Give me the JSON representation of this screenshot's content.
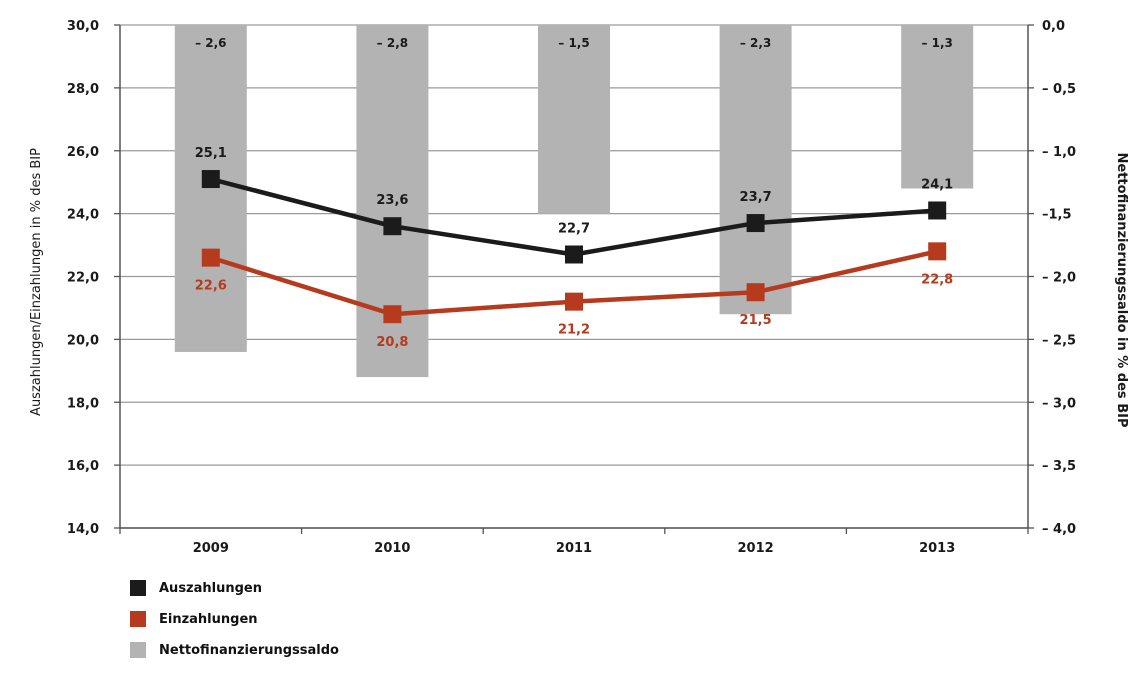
{
  "chart_data": {
    "type": "bar",
    "categories": [
      "2009",
      "2010",
      "2011",
      "2012",
      "2013"
    ],
    "left_axis": {
      "label": "Auszahlungen/Einzahlungen in % des BIP",
      "range": [
        14.0,
        30.0
      ],
      "ticks": [
        30.0,
        28.0,
        26.0,
        24.0,
        22.0,
        20.0,
        18.0,
        16.0,
        14.0
      ],
      "tick_labels": [
        "30,0",
        "28,0",
        "26,0",
        "24,0",
        "22,0",
        "20,0",
        "18,0",
        "16,0",
        "14,0"
      ]
    },
    "right_axis": {
      "label": "Nettofinanzierungssaldo in % des BIP",
      "range": [
        -4.0,
        0.0
      ],
      "ticks": [
        0.0,
        -0.5,
        -1.0,
        -1.5,
        -2.0,
        -2.5,
        -3.0,
        -3.5,
        -4.0
      ],
      "tick_labels": [
        "0,0",
        "– 0,5",
        "– 1,0",
        "–1,5",
        "– 2,0",
        "– 2,5",
        "– 3,0",
        "– 3,5",
        "– 4,0"
      ]
    },
    "series": [
      {
        "name": "Auszahlungen",
        "kind": "line",
        "axis": "left",
        "color": "#1b1b1b",
        "values": [
          25.1,
          23.6,
          22.7,
          23.7,
          24.1
        ],
        "labels": [
          "25,1",
          "23,6",
          "22,7",
          "23,7",
          "24,1"
        ]
      },
      {
        "name": "Einzahlungen",
        "kind": "line",
        "axis": "left",
        "color": "#b53a1e",
        "values": [
          22.6,
          20.8,
          21.2,
          21.5,
          22.8
        ],
        "labels": [
          "22,6",
          "20,8",
          "21,2",
          "21,5",
          "22,8"
        ]
      },
      {
        "name": "Nettofinanzierungssaldo",
        "kind": "bar",
        "axis": "right",
        "color": "#b3b3b3",
        "values": [
          -2.6,
          -2.8,
          -1.5,
          -2.3,
          -1.3
        ],
        "labels": [
          "– 2,6",
          "– 2,8",
          "– 1,5",
          "– 2,3",
          "– 1,3"
        ]
      }
    ],
    "grid": "horizontal",
    "legend_position": "bottom-left"
  },
  "legend": {
    "items": [
      {
        "label": "Auszahlungen",
        "color": "#1b1b1b"
      },
      {
        "label": "Einzahlungen",
        "color": "#b53a1e"
      },
      {
        "label": "Nettofinanzierungssaldo",
        "color": "#b3b3b3"
      }
    ]
  }
}
